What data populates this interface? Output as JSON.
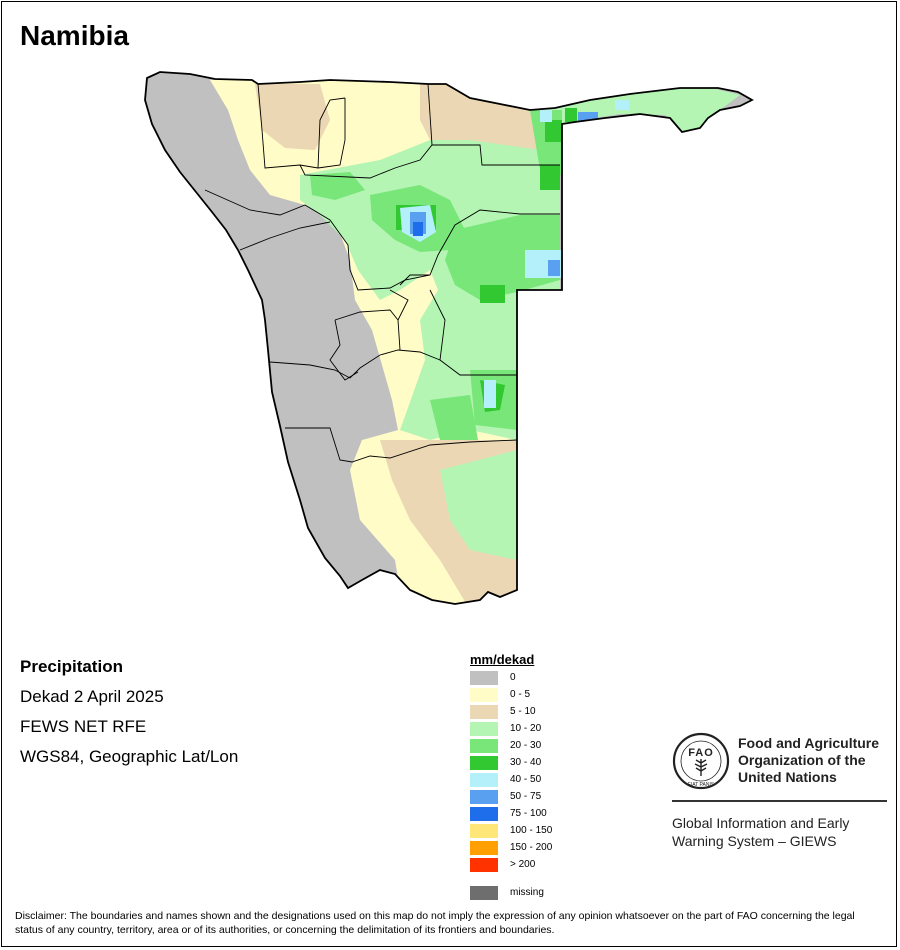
{
  "title": "Namibia",
  "info": {
    "heading": "Precipitation",
    "period": "Dekad 2 April 2025",
    "source": "FEWS NET RFE",
    "projection": "WGS84, Geographic Lat/Lon"
  },
  "legend": {
    "title": "mm/dekad",
    "items": [
      {
        "label": "0",
        "color": "#c0c0c0"
      },
      {
        "label": "0 - 5",
        "color": "#fffcc8"
      },
      {
        "label": "5 - 10",
        "color": "#ebd7b4"
      },
      {
        "label": "10 - 20",
        "color": "#b4f5b4"
      },
      {
        "label": "20 - 30",
        "color": "#78e678"
      },
      {
        "label": "30 - 40",
        "color": "#32c832"
      },
      {
        "label": "40 - 50",
        "color": "#b4f0fa"
      },
      {
        "label": "50 - 75",
        "color": "#5aa0f0"
      },
      {
        "label": "75 - 100",
        "color": "#1e6eeb"
      },
      {
        "label": "100 - 150",
        "color": "#ffe678"
      },
      {
        "label": "150 - 200",
        "color": "#ffa000"
      },
      {
        "label": "> 200",
        "color": "#ff3200"
      }
    ],
    "missing": {
      "label": "missing",
      "color": "#6e6e6e"
    }
  },
  "logo": {
    "emblem_text": "FAO",
    "emblem_motto": "FIAT PANIS",
    "name_lines": [
      "Food and Agriculture",
      "Organization of the",
      "United Nations"
    ],
    "giews_lines": [
      "Global Information and Early",
      "Warning System – GIEWS"
    ]
  },
  "disclaimer": "Disclaimer: The boundaries and names shown and the designations used on this map do not imply the expression of any opinion whatsoever on the part of FAO concerning the legal status of any country, territory, area or of its authorities, or concerning the delimitation of its frontiers and boundaries."
}
